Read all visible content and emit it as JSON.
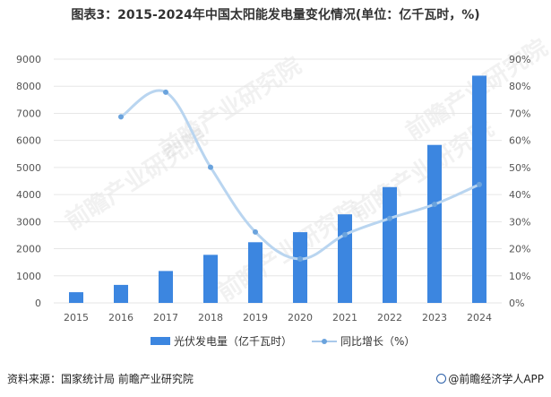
{
  "title": "图表3：2015-2024年中国太阳能发电量变化情况(单位：亿千瓦时，%)",
  "source": "资料来源：国家统计局 前瞻产业研究院",
  "credit": "@前瞻经济学人APP",
  "watermark": "前瞻产业研究院",
  "colors": {
    "bar": "#3c86e0",
    "line": "#b9d5f0",
    "point": "#6aa3dd",
    "grid": "#e6e6e6",
    "axis_text": "#555555"
  },
  "chart_data": {
    "type": "bar",
    "categories": [
      "2015",
      "2016",
      "2017",
      "2018",
      "2019",
      "2020",
      "2021",
      "2022",
      "2023",
      "2024"
    ],
    "series": [
      {
        "name": "光伏发电量（亿千瓦时）",
        "type": "bar",
        "axis": "left",
        "values": [
          395,
          665,
          1178,
          1775,
          2240,
          2611,
          3270,
          4276,
          5833,
          8390
        ]
      },
      {
        "name": "同比增长（%）",
        "type": "line",
        "axis": "right",
        "values": [
          null,
          68.7,
          77.8,
          50.1,
          26.2,
          16.2,
          25.2,
          31.2,
          36.4,
          43.7
        ]
      }
    ],
    "y_left": {
      "min": 0,
      "max": 9000,
      "ticks": [
        "0",
        "1000",
        "2000",
        "3000",
        "4000",
        "5000",
        "6000",
        "7000",
        "8000",
        "9000"
      ]
    },
    "y_right": {
      "min": 0,
      "max": 90,
      "ticks": [
        "0%",
        "10%",
        "20%",
        "30%",
        "40%",
        "50%",
        "60%",
        "70%",
        "80%",
        "90%"
      ]
    },
    "grid": true,
    "legend_position": "bottom"
  }
}
